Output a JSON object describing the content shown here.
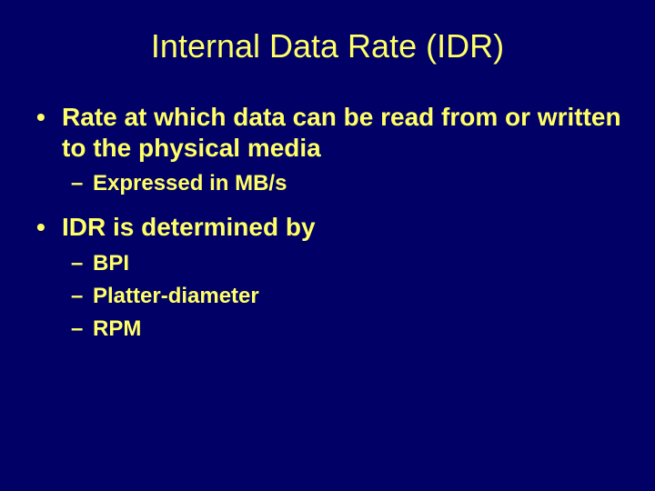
{
  "slide": {
    "background_color": "#000066",
    "text_color": "#ffff66",
    "title": "Internal Data Rate (IDR)",
    "title_fontsize": 36,
    "bullets": [
      {
        "level": 1,
        "text": "Rate at which data can be read from or written to the physical media",
        "fontsize": 28,
        "weight": "bold"
      },
      {
        "level": 2,
        "text": "Expressed in MB/s",
        "fontsize": 24,
        "weight": "bold"
      },
      {
        "level": 1,
        "text": "IDR is determined by",
        "fontsize": 28,
        "weight": "bold"
      },
      {
        "level": 2,
        "text": "BPI",
        "fontsize": 24,
        "weight": "bold"
      },
      {
        "level": 2,
        "text": "Platter-diameter",
        "fontsize": 24,
        "weight": "bold"
      },
      {
        "level": 2,
        "text": "RPM",
        "fontsize": 24,
        "weight": "bold"
      }
    ]
  }
}
